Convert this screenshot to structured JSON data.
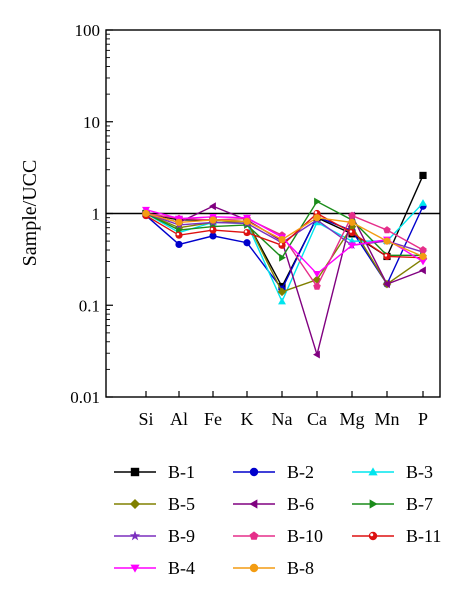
{
  "chart_data": {
    "type": "line",
    "xlabel": "",
    "ylabel": "Sample/UCC",
    "yscale": "log",
    "ylim": [
      0.01,
      100
    ],
    "yticks": [
      {
        "value": 100,
        "label": "100"
      },
      {
        "value": 10,
        "label": "10"
      },
      {
        "value": 1,
        "label": "1"
      },
      {
        "value": 0.1,
        "label": "0.1"
      },
      {
        "value": 0.01,
        "label": "0.01"
      }
    ],
    "categories": [
      "Si",
      "Al",
      "Fe",
      "K",
      "Na",
      "Ca",
      "Mg",
      "Mn",
      "P"
    ],
    "reference_line": 1,
    "legend_position": "bottom",
    "series": [
      {
        "name": "B-1",
        "color": "#000000",
        "marker": "square",
        "values": [
          1.0,
          0.85,
          0.85,
          0.82,
          0.16,
          0.9,
          0.6,
          0.34,
          2.6
        ]
      },
      {
        "name": "B-2",
        "color": "#0000cc",
        "marker": "circle",
        "values": [
          0.95,
          0.46,
          0.57,
          0.48,
          0.15,
          0.92,
          0.65,
          0.17,
          1.2
        ]
      },
      {
        "name": "B-3",
        "color": "#00e5ee",
        "marker": "triangle-up",
        "values": [
          1.0,
          0.62,
          0.8,
          0.78,
          0.11,
          0.8,
          0.5,
          0.5,
          1.3
        ]
      },
      {
        "name": "B-5",
        "color": "#808000",
        "marker": "diamond",
        "values": [
          1.0,
          0.7,
          0.8,
          0.82,
          0.14,
          0.19,
          0.72,
          0.17,
          0.32
        ]
      },
      {
        "name": "B-6",
        "color": "#800080",
        "marker": "triangle-left",
        "values": [
          1.0,
          0.8,
          1.2,
          0.85,
          0.5,
          0.029,
          0.95,
          0.17,
          0.24
        ]
      },
      {
        "name": "B-7",
        "color": "#1a8c1a",
        "marker": "triangle-right",
        "values": [
          1.0,
          0.66,
          0.72,
          0.75,
          0.33,
          1.35,
          0.85,
          0.35,
          0.35
        ]
      },
      {
        "name": "B-9",
        "color": "#7b2fbe",
        "marker": "star",
        "values": [
          1.0,
          0.75,
          0.8,
          0.78,
          0.48,
          0.85,
          0.45,
          0.5,
          0.38
        ]
      },
      {
        "name": "B-10",
        "color": "#e62e8a",
        "marker": "pentagon",
        "values": [
          1.0,
          0.88,
          0.85,
          0.88,
          0.58,
          0.16,
          0.95,
          0.66,
          0.4
        ]
      },
      {
        "name": "B-11",
        "color": "#dd1111",
        "marker": "circle-half",
        "values": [
          0.95,
          0.58,
          0.66,
          0.62,
          0.45,
          1.0,
          0.62,
          0.34,
          0.33
        ]
      },
      {
        "name": "B-4",
        "color": "#ff00ff",
        "marker": "triangle-down",
        "values": [
          1.1,
          0.88,
          0.92,
          0.9,
          0.55,
          0.22,
          0.45,
          0.52,
          0.3
        ]
      },
      {
        "name": "B-8",
        "color": "#f39c12",
        "marker": "circle",
        "values": [
          1.0,
          0.8,
          0.85,
          0.82,
          0.52,
          0.9,
          0.8,
          0.5,
          0.34
        ]
      }
    ]
  }
}
